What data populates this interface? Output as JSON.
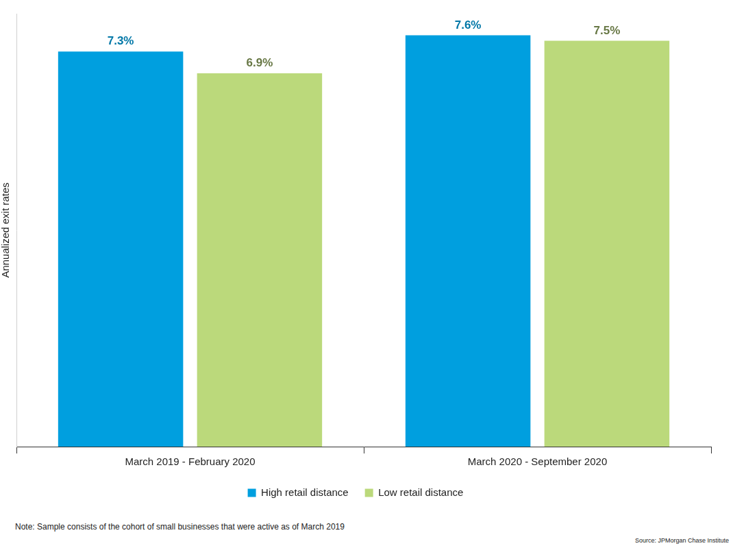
{
  "chart_data": {
    "type": "bar",
    "y_label": "Annualized exit rates",
    "categories": [
      "March 2019 - February 2020",
      "March 2020 - September 2020"
    ],
    "series": [
      {
        "name": "High retail distance",
        "color": "#009fdf",
        "values": [
          7.3,
          7.6
        ],
        "value_labels": [
          "7.3%",
          "7.6%"
        ]
      },
      {
        "name": "Low retail distance",
        "color": "#bbd97b",
        "values": [
          6.9,
          7.5
        ],
        "value_labels": [
          "6.9%",
          "7.5%"
        ]
      }
    ],
    "ylim": [
      0,
      8
    ],
    "grid": false,
    "legend": "bottom",
    "data_labels": true,
    "tick_labels": "x",
    "note": "Note: Sample consists of the cohort of small businesses that were active as of March 2019",
    "source": "Source: JPMorgan Chase Institute"
  }
}
